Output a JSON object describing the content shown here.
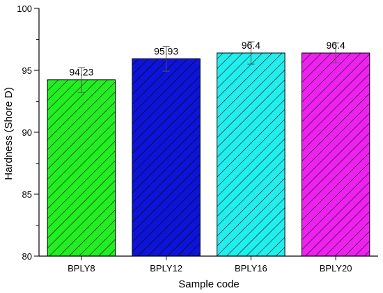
{
  "chart_data": {
    "type": "bar",
    "xlabel": "Sample code",
    "ylabel": "Hardness (Shore D)",
    "ylim": [
      80,
      100
    ],
    "yticks": [
      80,
      85,
      90,
      95,
      100
    ],
    "categories": [
      "BPLY8",
      "BPLY12",
      "BPLY16",
      "BPLY20"
    ],
    "values": [
      94.23,
      95.93,
      96.4,
      96.4
    ],
    "value_labels": [
      "94.23",
      "95.93",
      "96.4",
      "96.4"
    ],
    "error": [
      1.0,
      1.0,
      0.9,
      0.8
    ],
    "bar_colors": [
      "#22ee22",
      "#0e14d6",
      "#22eeee",
      "#ee22ee"
    ],
    "hatch": "diagonal"
  }
}
